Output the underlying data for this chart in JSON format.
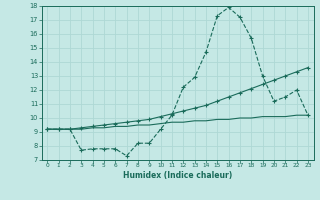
{
  "xlabel": "Humidex (Indice chaleur)",
  "xlim": [
    -0.5,
    23.5
  ],
  "ylim": [
    7,
    18
  ],
  "yticks": [
    7,
    8,
    9,
    10,
    11,
    12,
    13,
    14,
    15,
    16,
    17,
    18
  ],
  "xticks": [
    0,
    1,
    2,
    3,
    4,
    5,
    6,
    7,
    8,
    9,
    10,
    11,
    12,
    13,
    14,
    15,
    16,
    17,
    18,
    19,
    20,
    21,
    22,
    23
  ],
  "bg_color": "#c5e8e5",
  "line_color": "#1a6b5a",
  "grid_color": "#aed8d5",
  "line1_x": [
    0,
    1,
    2,
    3,
    4,
    5,
    6,
    7,
    8,
    9,
    10,
    11,
    12,
    13,
    14,
    15,
    16,
    17,
    18,
    19,
    20,
    21,
    22,
    23
  ],
  "line1_y": [
    9.2,
    9.2,
    9.2,
    7.7,
    7.8,
    7.8,
    7.8,
    7.3,
    8.2,
    8.2,
    9.2,
    10.2,
    12.2,
    12.9,
    14.7,
    17.3,
    17.9,
    17.2,
    15.7,
    13.0,
    11.2,
    11.5,
    12.0,
    10.2
  ],
  "line2_x": [
    0,
    1,
    2,
    3,
    4,
    5,
    6,
    7,
    8,
    9,
    10,
    11,
    12,
    13,
    14,
    15,
    16,
    17,
    18,
    19,
    20,
    21,
    22,
    23
  ],
  "line2_y": [
    9.2,
    9.2,
    9.2,
    9.3,
    9.4,
    9.5,
    9.6,
    9.7,
    9.8,
    9.9,
    10.1,
    10.3,
    10.5,
    10.7,
    10.9,
    11.2,
    11.5,
    11.8,
    12.1,
    12.4,
    12.7,
    13.0,
    13.3,
    13.6
  ],
  "line3_x": [
    0,
    1,
    2,
    3,
    4,
    5,
    6,
    7,
    8,
    9,
    10,
    11,
    12,
    13,
    14,
    15,
    16,
    17,
    18,
    19,
    20,
    21,
    22,
    23
  ],
  "line3_y": [
    9.2,
    9.2,
    9.2,
    9.2,
    9.3,
    9.3,
    9.4,
    9.4,
    9.5,
    9.5,
    9.6,
    9.7,
    9.7,
    9.8,
    9.8,
    9.9,
    9.9,
    10.0,
    10.0,
    10.1,
    10.1,
    10.1,
    10.2,
    10.2
  ]
}
